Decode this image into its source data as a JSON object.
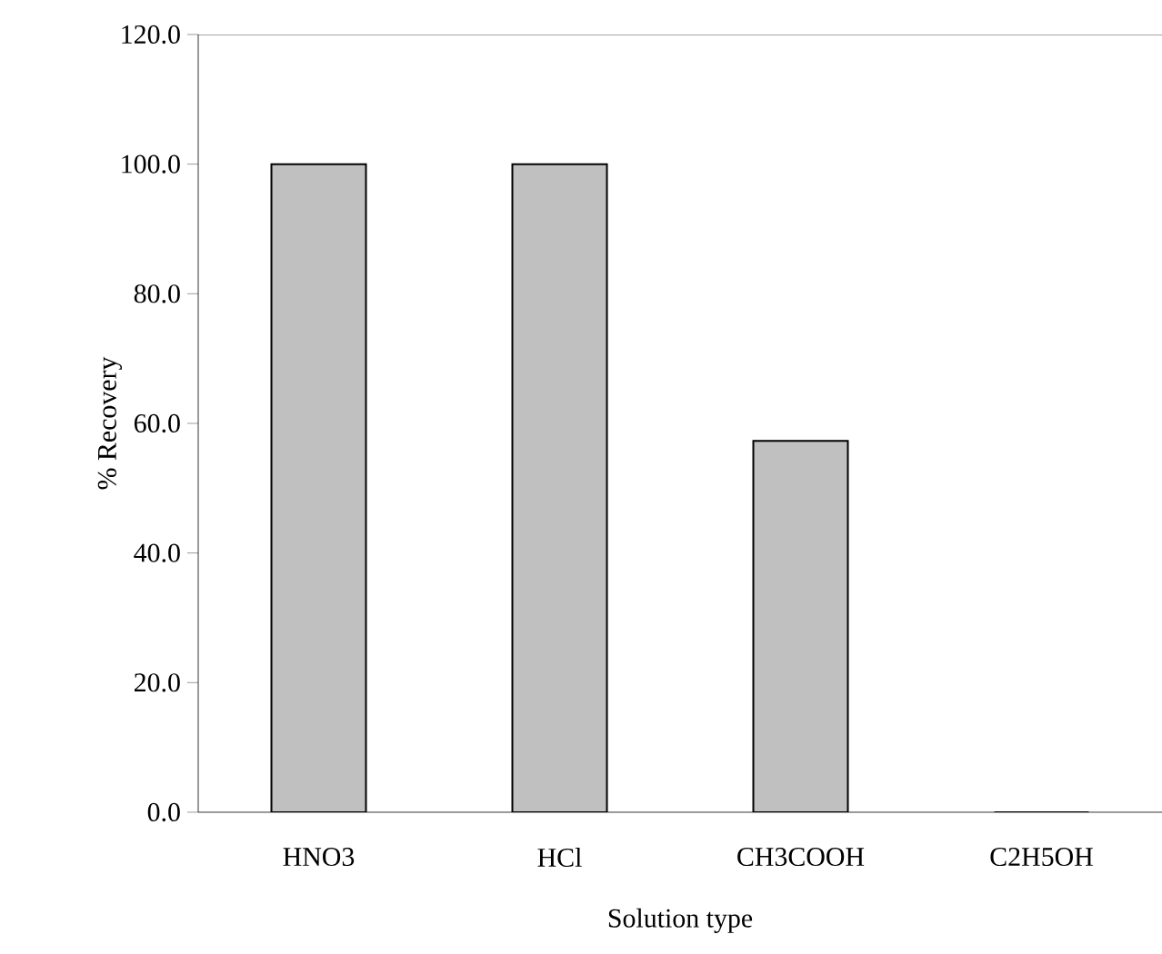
{
  "chart_data": {
    "type": "bar",
    "xlabel": "Solution type",
    "ylabel": "% Recovery",
    "categories": [
      "HNO3",
      "HCl",
      "CH3COOH",
      "C2H5OH"
    ],
    "values": [
      100.0,
      100.0,
      57.3,
      0.0
    ],
    "color": "#c0c0c0",
    "ylim": [
      0,
      120
    ],
    "yticks": [
      {
        "value": 0,
        "label": "0.0"
      },
      {
        "value": 20,
        "label": "20.0"
      },
      {
        "value": 40,
        "label": "40.0"
      },
      {
        "value": 60,
        "label": "60.0"
      },
      {
        "value": 80,
        "label": "80.0"
      },
      {
        "value": 100,
        "label": "100.0"
      },
      {
        "value": 120,
        "label": "120.0"
      }
    ],
    "grid": false
  }
}
